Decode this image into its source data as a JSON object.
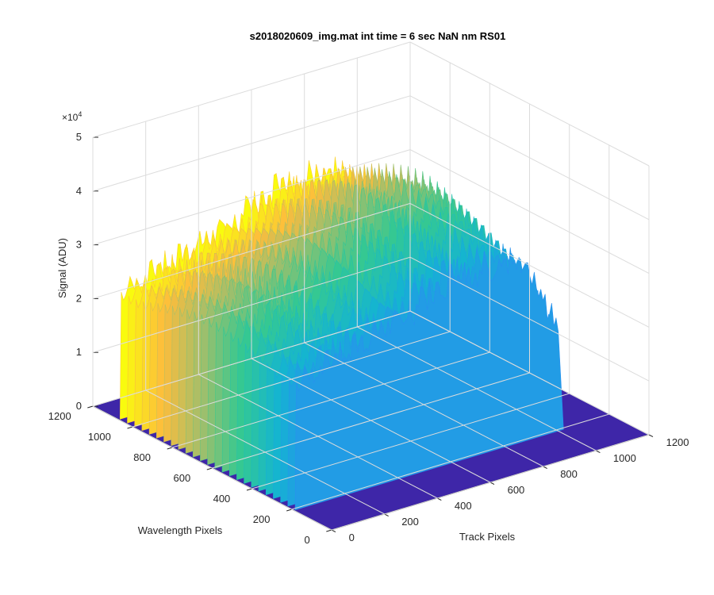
{
  "chart_data": {
    "type": "surface",
    "title": "s2018020609_img.mat int time = 6 sec  NaN nm RS01",
    "xlabel": "Track Pixels",
    "ylabel": "Wavelength Pixels",
    "zlabel": "Signal (ADU)",
    "z_exponent_base": "×10",
    "z_exponent_power": "4",
    "xlim": [
      0,
      1200
    ],
    "ylim": [
      0,
      1200
    ],
    "zlim": [
      0,
      50000
    ],
    "x_ticks": [
      "0",
      "200",
      "400",
      "600",
      "800",
      "1000",
      "1200"
    ],
    "y_ticks": [
      "0",
      "200",
      "400",
      "600",
      "800",
      "1000",
      "1200"
    ],
    "z_ticks": [
      "0",
      "1",
      "2",
      "3",
      "4",
      "5"
    ],
    "z_tick_values": [
      0,
      10000,
      20000,
      30000,
      40000,
      50000
    ],
    "grid": true,
    "colormap": [
      "#3e26a8",
      "#4352f5",
      "#2e87f7",
      "#14b5d0",
      "#36c990",
      "#a5be6a",
      "#fdbd3c",
      "#f9fb0e"
    ],
    "signal_region": {
      "x_range": [
        10,
        1000
      ],
      "y_range": [
        190,
        1070
      ],
      "peak_signal": 44000,
      "base_signal": 0,
      "ridges_at_x": [
        {
          "x": 590,
          "z": 44000
        },
        {
          "x": 700,
          "z": 44000
        },
        {
          "x": 810,
          "z": 44000
        }
      ],
      "profile_at_y_start": [
        {
          "x": 0,
          "z": 0
        },
        {
          "x": 10,
          "z": 30000
        },
        {
          "x": 200,
          "z": 34000
        },
        {
          "x": 400,
          "z": 37000
        },
        {
          "x": 590,
          "z": 44000
        },
        {
          "x": 700,
          "z": 44000
        },
        {
          "x": 810,
          "z": 44000
        },
        {
          "x": 900,
          "z": 37000
        },
        {
          "x": 1000,
          "z": 25000
        },
        {
          "x": 1050,
          "z": 0
        }
      ]
    }
  }
}
